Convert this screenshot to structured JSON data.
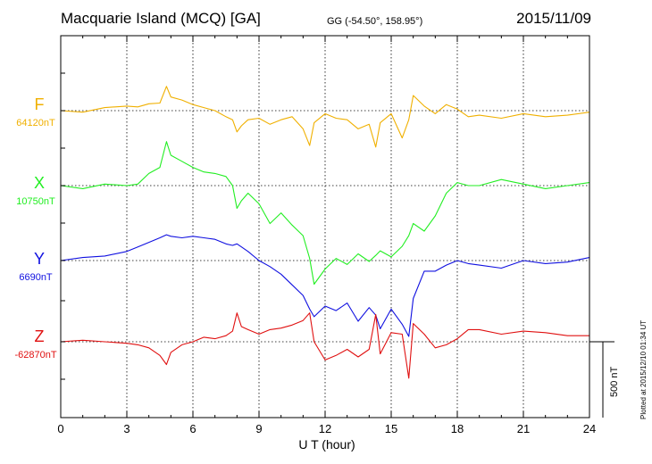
{
  "header": {
    "title": "Macquarie Island (MCQ)  [GA]",
    "coords": "GG (-54.50°, 158.95°)",
    "date": "2015/11/09"
  },
  "footer": {
    "plotted": "Plotted at 2015/12/10 01:34  UT"
  },
  "chart_data": {
    "type": "line",
    "xlabel": "U T (hour)",
    "xlim": [
      0,
      24
    ],
    "xticks": [
      "0",
      "3",
      "6",
      "9",
      "12",
      "15",
      "18",
      "21",
      "24"
    ],
    "scale_bar": {
      "label": "500 nT",
      "value_nT": 500
    },
    "grid": true,
    "series": [
      {
        "name": "F",
        "base_label": "64120nT",
        "color": "#f0b000",
        "x": [
          0,
          1,
          2,
          3,
          3.5,
          4,
          4.5,
          4.8,
          5,
          5.5,
          6,
          6.5,
          7,
          7.5,
          7.8,
          8,
          8.2,
          8.5,
          9,
          9.5,
          10,
          10.5,
          11,
          11.3,
          11.5,
          12,
          12.5,
          13,
          13.5,
          14,
          14.3,
          14.5,
          15,
          15.5,
          15.8,
          16,
          16.5,
          17,
          17.5,
          18,
          18.5,
          19,
          20,
          21,
          22,
          23,
          24
        ],
        "values": [
          0,
          -10,
          20,
          30,
          25,
          45,
          50,
          160,
          90,
          70,
          40,
          20,
          0,
          -40,
          -60,
          -140,
          -100,
          -60,
          -50,
          -90,
          -60,
          -40,
          -120,
          -230,
          -80,
          -20,
          -50,
          -60,
          -120,
          -90,
          -240,
          -80,
          -20,
          -180,
          -60,
          100,
          30,
          -20,
          40,
          10,
          -40,
          -30,
          -50,
          -20,
          -40,
          -30,
          -10
        ]
      },
      {
        "name": "X",
        "base_label": "10750nT",
        "color": "#22ee22",
        "x": [
          0,
          1,
          2,
          3,
          3.5,
          4,
          4.5,
          4.8,
          5,
          5.5,
          6,
          6.5,
          7,
          7.5,
          7.8,
          8,
          8.2,
          8.5,
          9,
          9.5,
          10,
          10.5,
          11,
          11.3,
          11.5,
          12,
          12.5,
          13,
          13.5,
          14,
          14.3,
          14.5,
          15,
          15.5,
          15.8,
          16,
          16.5,
          17,
          17.5,
          18,
          18.5,
          19,
          20,
          21,
          22,
          23,
          24
        ],
        "values": [
          0,
          -20,
          10,
          0,
          10,
          80,
          120,
          290,
          200,
          160,
          120,
          90,
          80,
          60,
          0,
          -150,
          -100,
          -50,
          -120,
          -250,
          -180,
          -260,
          -330,
          -480,
          -650,
          -550,
          -480,
          -520,
          -450,
          -500,
          -460,
          -430,
          -470,
          -400,
          -330,
          -250,
          -300,
          -200,
          -50,
          20,
          0,
          0,
          40,
          10,
          -20,
          0,
          20
        ]
      },
      {
        "name": "Y",
        "base_label": "6690nT",
        "color": "#1010e0",
        "x": [
          0,
          1,
          2,
          3,
          3.5,
          4,
          4.5,
          4.8,
          5,
          5.5,
          6,
          6.5,
          7,
          7.5,
          7.8,
          8,
          8.2,
          8.5,
          9,
          9.5,
          10,
          10.5,
          11,
          11.3,
          11.5,
          12,
          12.5,
          13,
          13.5,
          14,
          14.3,
          14.5,
          15,
          15.5,
          15.8,
          16,
          16.5,
          17,
          17.5,
          18,
          18.5,
          19,
          20,
          21,
          22,
          23,
          24
        ],
        "values": [
          0,
          20,
          30,
          60,
          90,
          120,
          150,
          170,
          160,
          150,
          160,
          150,
          140,
          110,
          100,
          110,
          90,
          60,
          0,
          -40,
          -90,
          -160,
          -230,
          -320,
          -370,
          -300,
          -330,
          -280,
          -400,
          -310,
          -360,
          -450,
          -320,
          -420,
          -500,
          -250,
          -70,
          -70,
          -30,
          0,
          -20,
          -30,
          -50,
          0,
          -20,
          -10,
          20
        ]
      },
      {
        "name": "Z",
        "base_label": "-62870nT",
        "color": "#e01010",
        "x": [
          0,
          1,
          2,
          3,
          3.5,
          4,
          4.5,
          4.8,
          5,
          5.5,
          6,
          6.5,
          7,
          7.5,
          7.8,
          8,
          8.2,
          8.5,
          9,
          9.5,
          10,
          10.5,
          11,
          11.3,
          11.5,
          12,
          12.5,
          13,
          13.5,
          14,
          14.3,
          14.5,
          15,
          15.5,
          15.8,
          16,
          16.5,
          17,
          17.5,
          18,
          18.5,
          19,
          20,
          21,
          22,
          23,
          24
        ],
        "values": [
          0,
          10,
          0,
          -10,
          -20,
          -40,
          -90,
          -150,
          -70,
          -20,
          0,
          30,
          20,
          40,
          70,
          190,
          100,
          80,
          50,
          80,
          90,
          110,
          140,
          190,
          0,
          -120,
          -90,
          -50,
          -100,
          -50,
          180,
          -80,
          60,
          50,
          -240,
          120,
          50,
          -40,
          -20,
          20,
          80,
          80,
          50,
          70,
          60,
          40,
          40
        ]
      }
    ]
  }
}
